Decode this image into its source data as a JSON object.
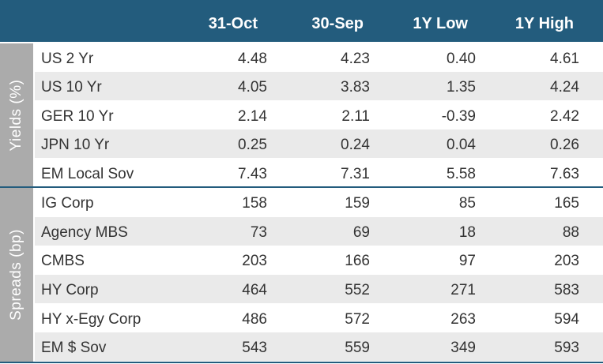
{
  "header": {
    "col1": "31-Oct",
    "col2": "30-Sep",
    "col3": "1Y Low",
    "col4": "1Y High"
  },
  "groups": {
    "yields": "Yields (%)",
    "spreads": "Spreads (bp)"
  },
  "rows": [
    {
      "label": "US 2 Yr",
      "c1": "4.48",
      "c2": "4.23",
      "c3": "0.40",
      "c4": "4.61"
    },
    {
      "label": "US 10 Yr",
      "c1": "4.05",
      "c2": "3.83",
      "c3": "1.35",
      "c4": "4.24"
    },
    {
      "label": "GER 10 Yr",
      "c1": "2.14",
      "c2": "2.11",
      "c3": "-0.39",
      "c4": "2.42"
    },
    {
      "label": "JPN 10 Yr",
      "c1": "0.25",
      "c2": "0.24",
      "c3": "0.04",
      "c4": "0.26"
    },
    {
      "label": "EM Local Sov",
      "c1": "7.43",
      "c2": "7.31",
      "c3": "5.58",
      "c4": "7.63"
    },
    {
      "label": "IG Corp",
      "c1": "158",
      "c2": "159",
      "c3": "85",
      "c4": "165"
    },
    {
      "label": "Agency MBS",
      "c1": "73",
      "c2": "69",
      "c3": "18",
      "c4": "88"
    },
    {
      "label": "CMBS",
      "c1": "203",
      "c2": "166",
      "c3": "97",
      "c4": "203"
    },
    {
      "label": "HY Corp",
      "c1": "464",
      "c2": "552",
      "c3": "271",
      "c4": "583"
    },
    {
      "label": "HY x-Egy Corp",
      "c1": "486",
      "c2": "572",
      "c3": "263",
      "c4": "594"
    },
    {
      "label": "EM $ Sov",
      "c1": "543",
      "c2": "559",
      "c3": "349",
      "c4": "593"
    }
  ],
  "colors": {
    "header_bg": "#235c7d",
    "group_bg": "#ababab",
    "stripe_bg": "#eaeaea"
  }
}
